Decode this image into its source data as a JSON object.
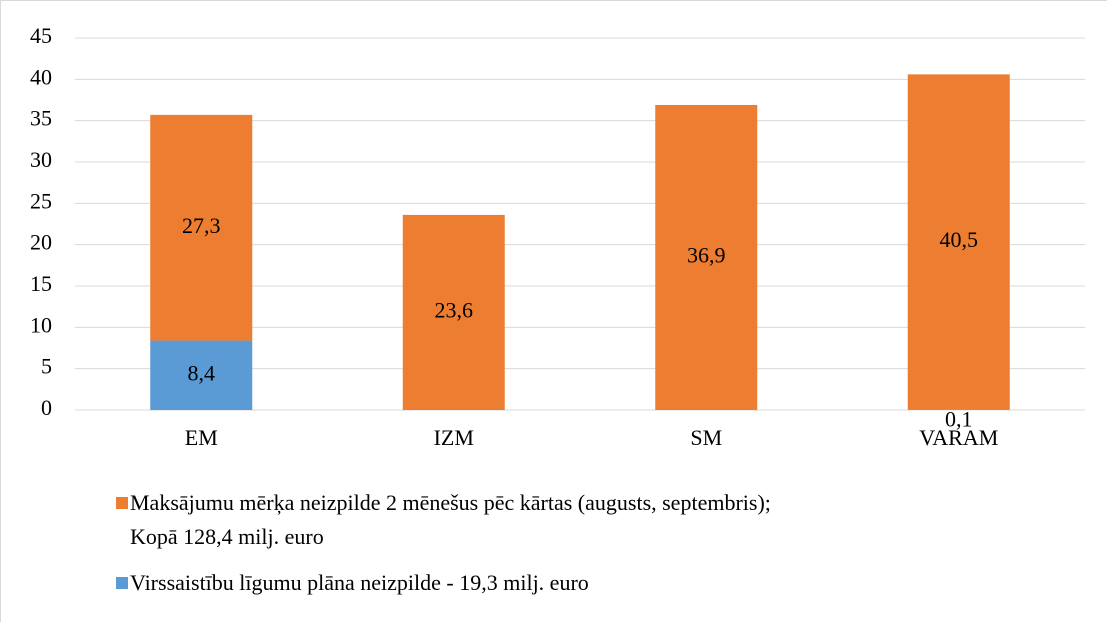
{
  "chart_data": {
    "type": "stacked_bar",
    "categories": [
      "EM",
      "IZM",
      "SM",
      "VARAM"
    ],
    "series": [
      {
        "name": "Maksājumu mērķa neizpilde 2 mēnešus pēc kārtas (augusts, septembris); Kopā 128,4 milj. euro",
        "color": "#ed7d31",
        "values": [
          27.3,
          23.6,
          36.9,
          40.5
        ],
        "value_labels": [
          "27,3",
          "23,6",
          "36,9",
          "40,5"
        ]
      },
      {
        "name": "Virssaistību līgumu plāna neizpilde - 19,3 milj. euro",
        "color": "#5b9bd5",
        "values": [
          8.4,
          null,
          null,
          0.1
        ],
        "value_labels": [
          "8,4",
          null,
          null,
          "0,1"
        ]
      }
    ],
    "ylim": [
      0,
      45
    ],
    "yticks": [
      0,
      5,
      10,
      15,
      20,
      25,
      30,
      35,
      40,
      45
    ],
    "grid": true
  }
}
